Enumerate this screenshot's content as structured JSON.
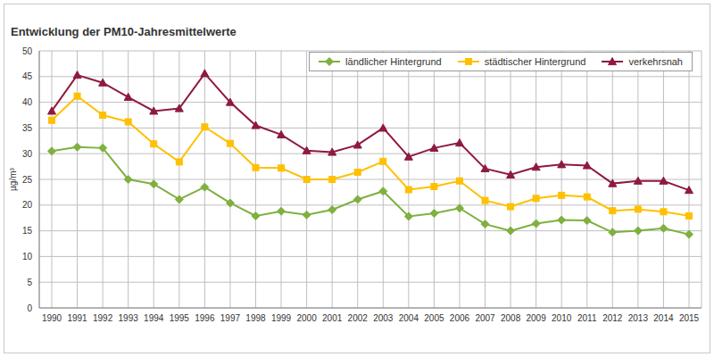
{
  "chart_data": {
    "type": "line",
    "title": "Entwicklung der PM10-Jahresmittelwerte",
    "y_label": "µg/m³",
    "categories": [
      "1990",
      "1991",
      "1992",
      "1993",
      "1994",
      "1995",
      "1996",
      "1997",
      "1998",
      "1999",
      "2000",
      "2001",
      "2002",
      "2003",
      "2004",
      "2005",
      "2006",
      "2007",
      "2008",
      "2009",
      "2010",
      "2011",
      "2012",
      "2013",
      "2014",
      "2015"
    ],
    "series": [
      {
        "name": "ländlicher Hintergrund",
        "color": "#7fb040",
        "marker": "diamond",
        "values": [
          30.5,
          31.3,
          31.1,
          25.0,
          24.1,
          21.1,
          23.5,
          20.4,
          17.9,
          18.8,
          18.1,
          19.1,
          21.1,
          22.7,
          17.8,
          18.4,
          19.4,
          16.3,
          15.0,
          16.4,
          17.1,
          17.0,
          14.7,
          15.0,
          15.5,
          14.3
        ]
      },
      {
        "name": "städtischer Hintergrund",
        "color": "#ffc000",
        "marker": "square",
        "values": [
          36.5,
          41.2,
          37.5,
          36.2,
          31.9,
          28.4,
          35.2,
          32.0,
          27.3,
          27.2,
          25.0,
          25.0,
          26.4,
          28.5,
          23.0,
          23.6,
          24.7,
          20.9,
          19.7,
          21.3,
          21.9,
          21.6,
          18.9,
          19.2,
          18.7,
          17.9
        ]
      },
      {
        "name": "verkehrsnah",
        "color": "#8e1a3e",
        "marker": "triangle",
        "values": [
          38.3,
          45.3,
          43.8,
          41.0,
          38.3,
          38.8,
          45.6,
          40.0,
          35.5,
          33.7,
          30.6,
          30.3,
          31.7,
          35.0,
          29.4,
          31.1,
          32.1,
          27.1,
          25.9,
          27.4,
          27.9,
          27.7,
          24.2,
          24.7,
          24.7,
          22.9
        ]
      }
    ],
    "ylim": [
      0,
      50
    ],
    "yticks": [
      0,
      5,
      10,
      15,
      20,
      25,
      30,
      35,
      40,
      45,
      50
    ],
    "grid": true,
    "legend": "upper right"
  }
}
